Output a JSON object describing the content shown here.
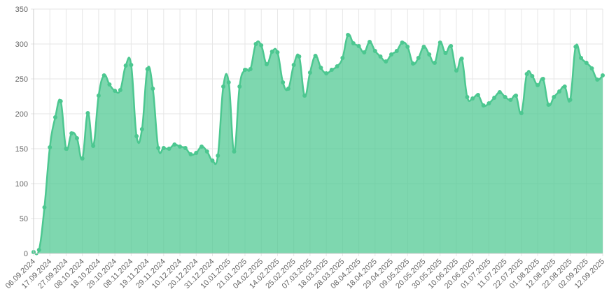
{
  "chart_data": {
    "type": "area",
    "categories": [
      "06.09.2024",
      null,
      null,
      "17.09.2024",
      null,
      null,
      "27.09.2024",
      null,
      null,
      "08.10.2024",
      null,
      null,
      "18.10.2024",
      null,
      null,
      "29.10.2024",
      null,
      null,
      "08.11.2024",
      null,
      null,
      "19.11.2024",
      null,
      null,
      "29.11.2024",
      null,
      null,
      "10.12.2024",
      null,
      null,
      "20.12.2024",
      null,
      null,
      "31.12.2024",
      null,
      null,
      "10.01.2025",
      null,
      null,
      "21.01.2025",
      null,
      null,
      "04.02.2025",
      null,
      null,
      "14.02.2025",
      null,
      null,
      "25.02.2025",
      null,
      null,
      "07.03.2025",
      null,
      null,
      "18.03.2025",
      null,
      null,
      "28.03.2025",
      null,
      null,
      "08.04.2025",
      null,
      null,
      "18.04.2025",
      null,
      null,
      "29.04.2025",
      null,
      null,
      "09.05.2025",
      null,
      null,
      "20.05.2025",
      null,
      null,
      "30.05.2025",
      null,
      null,
      "10.06.2025",
      null,
      null,
      "20.06.2025",
      null,
      null,
      "01.07.2025",
      null,
      null,
      "11.07.2025",
      null,
      null,
      "22.07.2025",
      null,
      null,
      "01.08.2025",
      null,
      null,
      "12.08.2025",
      null,
      null,
      "22.08.2025",
      null,
      null,
      "02.09.2025",
      null,
      null,
      "12.09.2025"
    ],
    "values": [
      2,
      5,
      66,
      152,
      195,
      218,
      150,
      172,
      165,
      136,
      201,
      154,
      226,
      255,
      242,
      233,
      234,
      269,
      270,
      168,
      178,
      264,
      236,
      151,
      151,
      150,
      156,
      153,
      151,
      142,
      144,
      153,
      146,
      133,
      140,
      239,
      245,
      146,
      239,
      263,
      264,
      300,
      298,
      271,
      289,
      288,
      245,
      236,
      270,
      282,
      226,
      259,
      283,
      266,
      258,
      263,
      268,
      280,
      313,
      301,
      297,
      288,
      303,
      290,
      282,
      275,
      285,
      290,
      302,
      296,
      272,
      280,
      296,
      285,
      273,
      302,
      287,
      297,
      262,
      279,
      224,
      222,
      227,
      212,
      215,
      223,
      231,
      224,
      220,
      226,
      201,
      257,
      254,
      241,
      250,
      213,
      224,
      232,
      239,
      220,
      296,
      280,
      273,
      265,
      249,
      255
    ],
    "color": "#4cc790",
    "ylim": [
      0,
      350
    ],
    "yticks": [
      0,
      50,
      100,
      150,
      200,
      250,
      300,
      350
    ],
    "grid": true
  }
}
